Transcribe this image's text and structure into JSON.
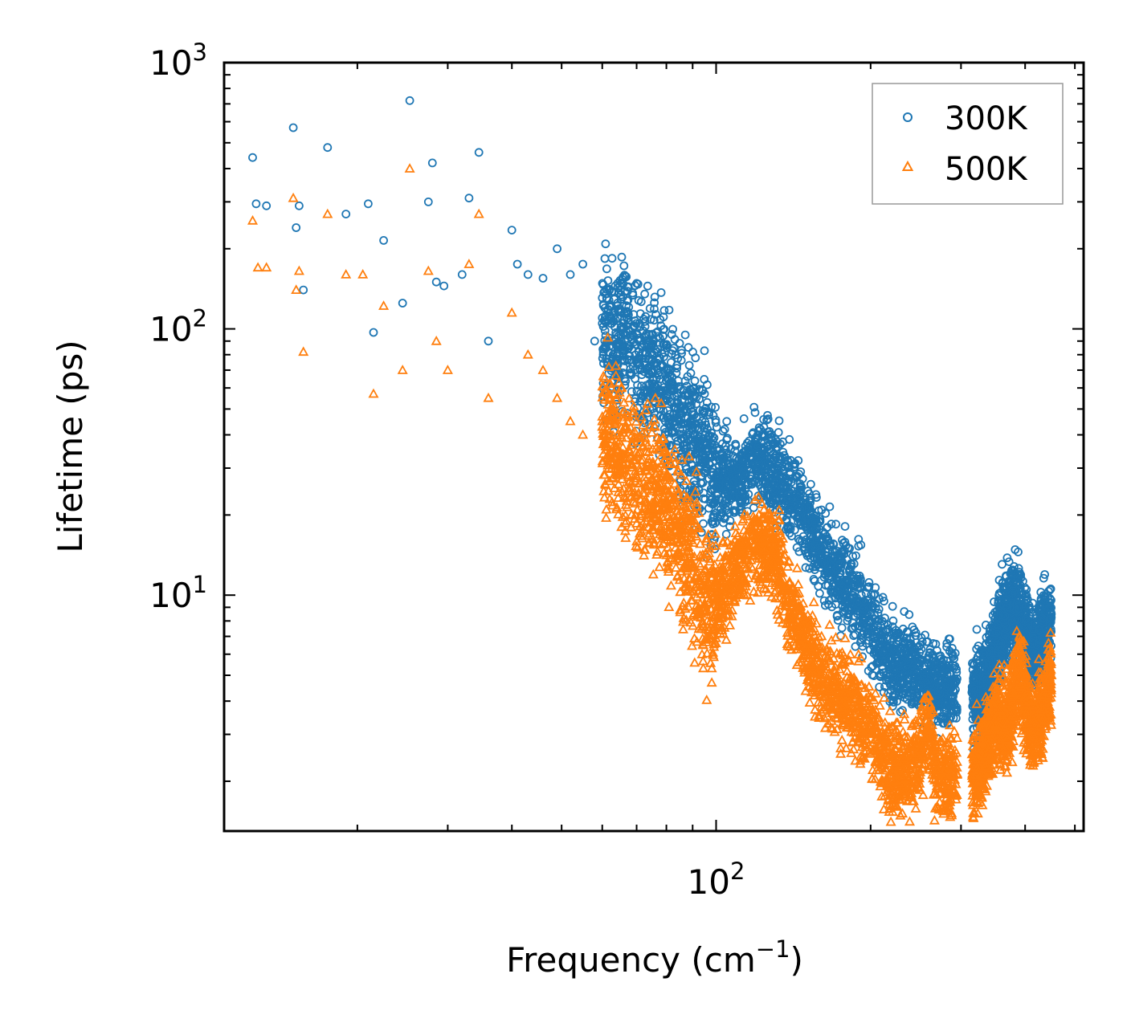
{
  "chart_data": {
    "type": "scatter",
    "title": "",
    "xlabel": "Frequency (cm",
    "xlabel_superscript": "−1",
    "xlabel_close": ")",
    "ylabel": "Lifetime (ps)",
    "xscale": "log",
    "yscale": "log",
    "xlim": [
      11,
      520
    ],
    "ylim": [
      1.3,
      1000
    ],
    "x_ticks": [
      {
        "base": "10",
        "exp": "2",
        "value": 100
      }
    ],
    "y_ticks": [
      {
        "base": "10",
        "exp": "1",
        "value": 10
      },
      {
        "base": "10",
        "exp": "2",
        "value": 100
      },
      {
        "base": "10",
        "exp": "3",
        "value": 1000
      }
    ],
    "legend_position": "top-right",
    "series": [
      {
        "name": "300K",
        "color": "#1f77b4",
        "marker": "circle-open",
        "sampled_points": [
          [
            12.5,
            440
          ],
          [
            12.7,
            295
          ],
          [
            13.3,
            290
          ],
          [
            15.0,
            570
          ],
          [
            15.2,
            240
          ],
          [
            15.4,
            290
          ],
          [
            15.7,
            140
          ],
          [
            17.5,
            480
          ],
          [
            19.0,
            270
          ],
          [
            21.0,
            295
          ],
          [
            21.5,
            97
          ],
          [
            22.5,
            215
          ],
          [
            24.5,
            125
          ],
          [
            25.3,
            720
          ],
          [
            27.5,
            300
          ],
          [
            28.0,
            420
          ],
          [
            28.5,
            150
          ],
          [
            29.5,
            145
          ],
          [
            32.0,
            160
          ],
          [
            33.0,
            310
          ],
          [
            34.5,
            460
          ],
          [
            36.0,
            90
          ],
          [
            40.0,
            235
          ],
          [
            41.0,
            175
          ],
          [
            43.0,
            160
          ],
          [
            46.0,
            155
          ],
          [
            49.0,
            200
          ],
          [
            52.0,
            160
          ],
          [
            55.0,
            175
          ],
          [
            58.0,
            90
          ],
          [
            60.0,
            110
          ],
          [
            63.0,
            80
          ],
          [
            66.0,
            105
          ],
          [
            70.0,
            75
          ],
          [
            75.0,
            70
          ],
          [
            80.0,
            55
          ],
          [
            85.0,
            45
          ],
          [
            90.0,
            40
          ],
          [
            95.0,
            32
          ],
          [
            100.0,
            28
          ],
          [
            110.0,
            27
          ],
          [
            120.0,
            33
          ],
          [
            130.0,
            28
          ],
          [
            140.0,
            24
          ],
          [
            150.0,
            19
          ],
          [
            160.0,
            15
          ],
          [
            170.0,
            12
          ],
          [
            180.0,
            10.5
          ],
          [
            190.0,
            9.5
          ],
          [
            200.0,
            8
          ],
          [
            210.0,
            6.5
          ],
          [
            220.0,
            5.5
          ],
          [
            240.0,
            5.5
          ],
          [
            260.0,
            4.8
          ],
          [
            280.0,
            4.5
          ],
          [
            330.0,
            4.3
          ],
          [
            350.0,
            6.5
          ],
          [
            370.0,
            8.5
          ],
          [
            390.0,
            9.5
          ],
          [
            410.0,
            6
          ],
          [
            430.0,
            7
          ],
          [
            450.0,
            8.5
          ]
        ]
      },
      {
        "name": "500K",
        "color": "#ff7f0e",
        "marker": "triangle-open",
        "sampled_points": [
          [
            12.5,
            255
          ],
          [
            12.8,
            170
          ],
          [
            13.3,
            170
          ],
          [
            15.0,
            310
          ],
          [
            15.2,
            140
          ],
          [
            15.4,
            165
          ],
          [
            15.7,
            82
          ],
          [
            17.5,
            270
          ],
          [
            19.0,
            160
          ],
          [
            20.5,
            160
          ],
          [
            21.5,
            57
          ],
          [
            22.5,
            122
          ],
          [
            24.5,
            70
          ],
          [
            25.3,
            400
          ],
          [
            27.5,
            165
          ],
          [
            28.5,
            90
          ],
          [
            30.0,
            70
          ],
          [
            33.0,
            175
          ],
          [
            34.5,
            270
          ],
          [
            36.0,
            55
          ],
          [
            40.0,
            115
          ],
          [
            43.0,
            80
          ],
          [
            46.0,
            70
          ],
          [
            49.0,
            55
          ],
          [
            52.0,
            45
          ],
          [
            55.0,
            40
          ],
          [
            60.0,
            45
          ],
          [
            65.0,
            33
          ],
          [
            70.0,
            28
          ],
          [
            75.0,
            25
          ],
          [
            80.0,
            22
          ],
          [
            85.0,
            17
          ],
          [
            90.0,
            13
          ],
          [
            95.0,
            9
          ],
          [
            100.0,
            9.5
          ],
          [
            110.0,
            13
          ],
          [
            120.0,
            16
          ],
          [
            130.0,
            14
          ],
          [
            140.0,
            9
          ],
          [
            150.0,
            6.5
          ],
          [
            160.0,
            5
          ],
          [
            170.0,
            4.5
          ],
          [
            180.0,
            4
          ],
          [
            190.0,
            3.5
          ],
          [
            200.0,
            3.3
          ],
          [
            210.0,
            2.5
          ],
          [
            220.0,
            2.2
          ],
          [
            240.0,
            2.3
          ],
          [
            260.0,
            3.1
          ],
          [
            270.0,
            2.2
          ],
          [
            280.0,
            2.1
          ],
          [
            330.0,
            2.3
          ],
          [
            350.0,
            3.5
          ],
          [
            370.0,
            3.2
          ],
          [
            390.0,
            5.5
          ],
          [
            410.0,
            3
          ],
          [
            430.0,
            3.5
          ],
          [
            450.0,
            5
          ]
        ]
      }
    ]
  }
}
